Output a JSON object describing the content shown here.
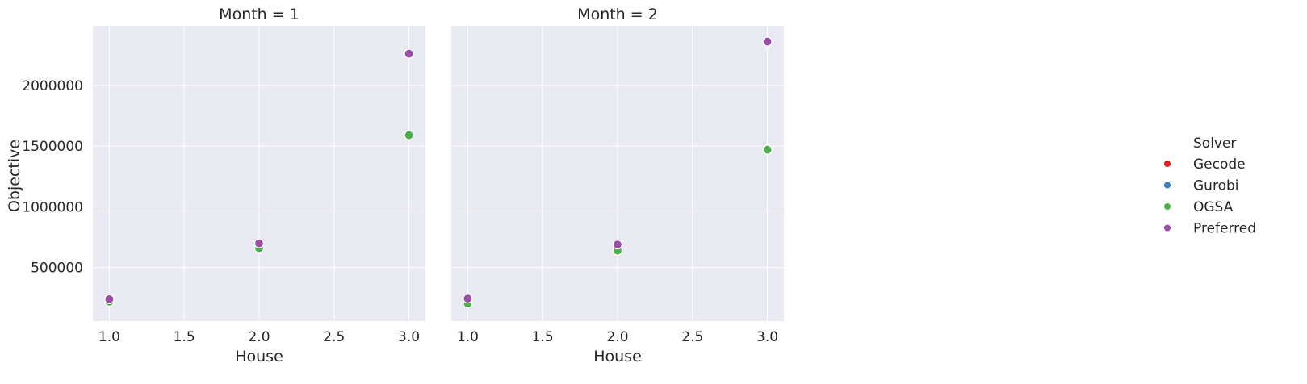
{
  "chart_data": {
    "type": "scatter",
    "xlabel": "House",
    "ylabel": "Objective",
    "xlim": [
      0.89,
      3.11
    ],
    "ylim": [
      60000,
      2490000
    ],
    "x_ticks": [
      1.0,
      1.5,
      2.0,
      2.5,
      3.0
    ],
    "x_tick_labels": [
      "1.0",
      "1.5",
      "2.0",
      "2.5",
      "3.0"
    ],
    "y_ticks": [
      500000,
      1000000,
      1500000,
      2000000
    ],
    "y_tick_labels": [
      "500000",
      "1000000",
      "1500000",
      "2000000"
    ],
    "grid": true,
    "legend": {
      "title": "Solver",
      "placement": "right",
      "entries": [
        {
          "name": "Gecode",
          "color": "#e41a1c"
        },
        {
          "name": "Gurobi",
          "color": "#377eb8"
        },
        {
          "name": "OGSA",
          "color": "#4daf4a"
        },
        {
          "name": "Preferred",
          "color": "#984ea3"
        }
      ]
    },
    "panels": [
      {
        "title": "Month = 1",
        "series": [
          {
            "name": "OGSA",
            "x": [
              1.0,
              2.0,
              3.0
            ],
            "y": [
              220000,
              660000,
              1590000
            ]
          },
          {
            "name": "Preferred",
            "x": [
              1.0,
              2.0,
              3.0
            ],
            "y": [
              240000,
              700000,
              2260000
            ]
          }
        ]
      },
      {
        "title": "Month = 2",
        "series": [
          {
            "name": "OGSA",
            "x": [
              1.0,
              2.0,
              3.0
            ],
            "y": [
              205000,
              640000,
              1470000
            ]
          },
          {
            "name": "Preferred",
            "x": [
              1.0,
              2.0,
              3.0
            ],
            "y": [
              245000,
              690000,
              2360000
            ]
          }
        ]
      }
    ]
  },
  "style": {
    "plot_background": "#eaeaf2",
    "grid_color": "#ffffff",
    "marker_edge": "#ffffff"
  }
}
